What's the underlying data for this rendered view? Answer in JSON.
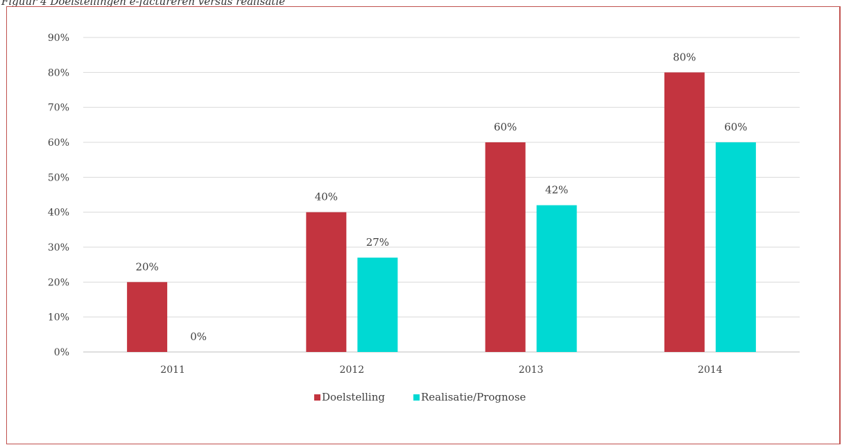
{
  "caption": "Figuur 4 Doelstellingen e-factureren versus realisatie",
  "colors": {
    "series1": "#c3343f",
    "series2": "#00d9d3",
    "grid": "#d9d9d9",
    "axis": "#bfbfbf",
    "frame": "#c0504d"
  },
  "chart_data": {
    "type": "bar",
    "categories": [
      "2011",
      "2012",
      "2013",
      "2014"
    ],
    "series": [
      {
        "name": "Doelstelling",
        "values": [
          20,
          40,
          60,
          80
        ],
        "labels": [
          "20%",
          "40%",
          "60%",
          "80%"
        ]
      },
      {
        "name": "Realisatie/Prognose",
        "values": [
          0,
          27,
          42,
          60
        ],
        "labels": [
          "0%",
          "27%",
          "42%",
          "60%"
        ]
      }
    ],
    "yticks": [
      "0%",
      "10%",
      "20%",
      "30%",
      "40%",
      "50%",
      "60%",
      "70%",
      "80%",
      "90%"
    ],
    "ylim": [
      0,
      90
    ],
    "grid": true,
    "legend_position": "bottom"
  }
}
